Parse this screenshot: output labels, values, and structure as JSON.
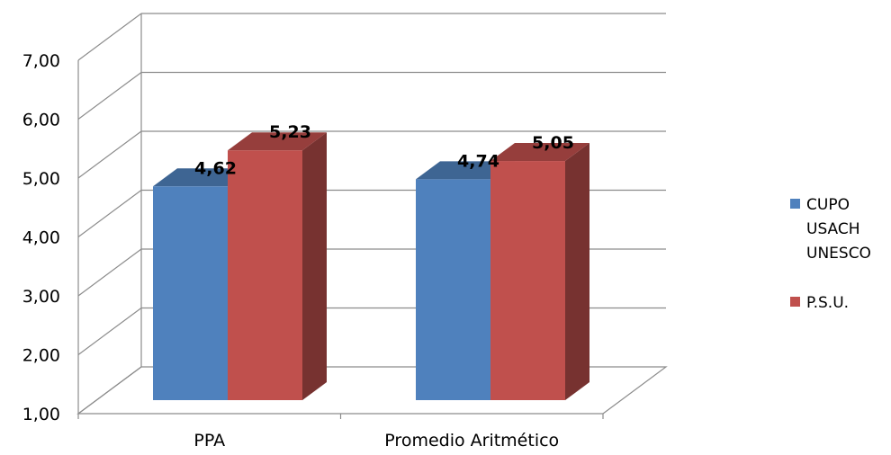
{
  "chart_data": {
    "type": "bar",
    "categories": [
      "PPA",
      "Promedio Aritmético"
    ],
    "series": [
      {
        "name": "CUPO USACH UNESCO",
        "name_lines": [
          "CUPO",
          "USACH",
          "UNESCO"
        ],
        "values": [
          4.62,
          4.74
        ],
        "value_labels": [
          "4,62",
          "4,74"
        ],
        "color": "#4F81BD"
      },
      {
        "name": "P.S.U.",
        "name_lines": [
          "P.S.U."
        ],
        "values": [
          5.23,
          5.05
        ],
        "value_labels": [
          "5,23",
          "5,05"
        ],
        "color": "#C0504D"
      }
    ],
    "y_ticks": [
      "1,00",
      "2,00",
      "3,00",
      "4,00",
      "5,00",
      "6,00",
      "7,00"
    ],
    "ylim": [
      1,
      7
    ],
    "grid": true,
    "legend_position": "right",
    "style": "3d-clustered-column"
  }
}
